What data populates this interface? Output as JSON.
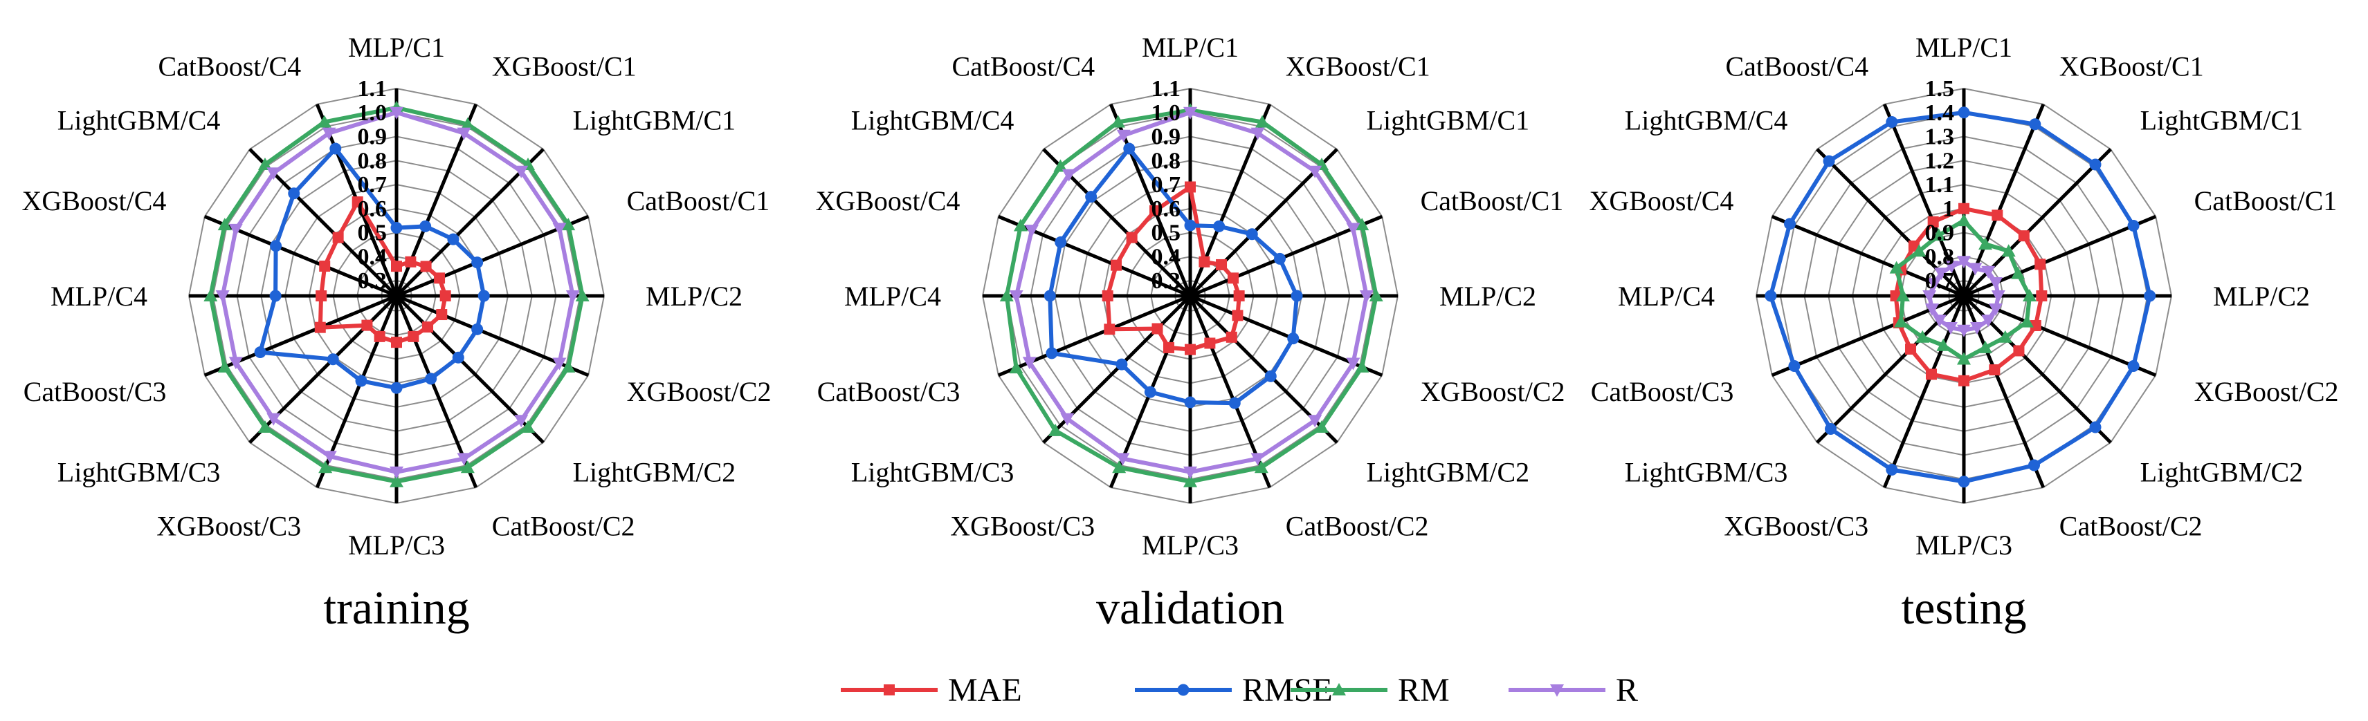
{
  "chart_data": [
    {
      "type": "radar",
      "title": "training",
      "categories": [
        "MLP/C1",
        "XGBoost/C1",
        "LightGBM/C1",
        "CatBoost/C1",
        "MLP/C2",
        "XGBoost/C2",
        "LightGBM/C2",
        "CatBoost/C2",
        "MLP/C3",
        "XGBoost/C3",
        "LightGBM/C3",
        "CatBoost/C3",
        "MLP/C4",
        "XGBoost/C4",
        "LightGBM/C4",
        "CatBoost/C4"
      ],
      "rlim": [
        0.3,
        1.1
      ],
      "ticks": [
        "0.3",
        "0.4",
        "0.5",
        "0.6",
        "0.7",
        "0.8",
        "0.9",
        "1.0",
        "1.1"
      ],
      "series": [
        {
          "name": "MAE",
          "values": [
            0.36,
            0.39,
            0.41,
            0.43,
            0.44,
            0.44,
            0.42,
            0.42,
            0.43,
            0.42,
            0.41,
            0.58,
            0.55,
            0.56,
            0.58,
            0.66
          ]
        },
        {
          "name": "RMSE",
          "values": [
            0.52,
            0.55,
            0.57,
            0.6,
            0.6,
            0.6,
            0.6,
            0.61,
            0.62,
            0.62,
            0.61,
            0.85,
            0.74,
            0.78,
            0.84,
            0.9
          ]
        },
        {
          "name": "RM",
          "values": [
            1.02,
            1.01,
            1.01,
            1.01,
            1.01,
            1.01,
            1.01,
            1.01,
            1.01,
            1.01,
            1.01,
            1.01,
            1.01,
            1.01,
            1.01,
            1.02
          ]
        },
        {
          "name": "R",
          "values": [
            1.0,
            0.97,
            0.97,
            0.97,
            0.97,
            0.97,
            0.97,
            0.97,
            0.97,
            0.96,
            0.96,
            0.96,
            0.96,
            0.96,
            0.96,
            0.97
          ]
        }
      ]
    },
    {
      "type": "radar",
      "title": "validation",
      "categories": [
        "MLP/C1",
        "XGBoost/C1",
        "LightGBM/C1",
        "CatBoost/C1",
        "MLP/C2",
        "XGBoost/C2",
        "LightGBM/C2",
        "CatBoost/C2",
        "MLP/C3",
        "XGBoost/C3",
        "LightGBM/C3",
        "CatBoost/C3",
        "MLP/C4",
        "XGBoost/C4",
        "LightGBM/C4",
        "CatBoost/C4"
      ],
      "rlim": [
        0.3,
        1.1
      ],
      "ticks": [
        "0.3",
        "0.4",
        "0.5",
        "0.6",
        "0.7",
        "0.8",
        "0.9",
        "1.0",
        "1.1"
      ],
      "series": [
        {
          "name": "MAE",
          "values": [
            0.69,
            0.39,
            0.42,
            0.43,
            0.44,
            0.45,
            0.48,
            0.45,
            0.46,
            0.47,
            0.43,
            0.6,
            0.58,
            0.57,
            0.58,
            0.62
          ]
        },
        {
          "name": "RMSE",
          "values": [
            0.53,
            0.55,
            0.6,
            0.64,
            0.68,
            0.7,
            0.71,
            0.72,
            0.68,
            0.67,
            0.64,
            0.86,
            0.82,
            0.82,
            0.82,
            0.9
          ]
        },
        {
          "name": "RM",
          "values": [
            1.01,
            1.02,
            1.01,
            1.01,
            1.01,
            1.01,
            1.01,
            1.01,
            1.01,
            1.01,
            1.03,
            1.02,
            1.0,
            1.0,
            1.0,
            1.02
          ]
        },
        {
          "name": "R",
          "values": [
            1.0,
            0.97,
            0.97,
            0.97,
            0.97,
            0.97,
            0.97,
            0.97,
            0.97,
            0.97,
            0.96,
            0.96,
            0.96,
            0.95,
            0.95,
            0.96
          ]
        }
      ]
    },
    {
      "type": "radar",
      "title": "testing",
      "categories": [
        "MLP/C1",
        "XGBoost/C1",
        "LightGBM/C1",
        "CatBoost/C1",
        "MLP/C2",
        "XGBoost/C2",
        "LightGBM/C2",
        "CatBoost/C2",
        "MLP/C3",
        "XGBoost/C3",
        "LightGBM/C3",
        "CatBoost/C3",
        "MLP/C4",
        "XGBoost/C4",
        "LightGBM/C4",
        "CatBoost/C4"
      ],
      "rlim": [
        0.7,
        1.5
      ],
      "ticks": [
        "0.7",
        "0.8",
        "0.9",
        "1",
        "1.1",
        "1.2",
        "1.3",
        "1.4",
        "1.5"
      ],
      "series": [
        {
          "name": "MAE",
          "values": [
            1.0,
            1.0,
            0.99,
            0.98,
            0.96,
            0.96,
            0.96,
            0.97,
            0.99,
            0.99,
            0.95,
            0.93,
            0.92,
            0.92,
            0.93,
            0.97
          ]
        },
        {
          "name": "RMSE",
          "values": [
            1.4,
            1.41,
            1.41,
            1.4,
            1.41,
            1.4,
            1.41,
            1.4,
            1.41,
            1.42,
            1.42,
            1.4,
            1.44,
            1.42,
            1.43,
            1.42
          ]
        },
        {
          "name": "RM",
          "values": [
            0.95,
            0.87,
            0.9,
            0.88,
            0.91,
            0.92,
            0.88,
            0.87,
            0.9,
            0.86,
            0.88,
            0.92,
            0.89,
            0.94,
            0.9,
            0.91
          ]
        },
        {
          "name": "R",
          "values": [
            0.78,
            0.76,
            0.78,
            0.78,
            0.78,
            0.78,
            0.78,
            0.78,
            0.78,
            0.78,
            0.78,
            0.78,
            0.78,
            0.77,
            0.77,
            0.77
          ]
        }
      ]
    }
  ],
  "legend": [
    {
      "name": "MAE",
      "color": "#e8383d",
      "marker": "square"
    },
    {
      "name": "RMSE",
      "color": "#1f63d6",
      "marker": "circle"
    },
    {
      "name": "RM",
      "color": "#3aa862",
      "marker": "triangle-up"
    },
    {
      "name": "R",
      "color": "#a77ee0",
      "marker": "triangle-down"
    }
  ]
}
